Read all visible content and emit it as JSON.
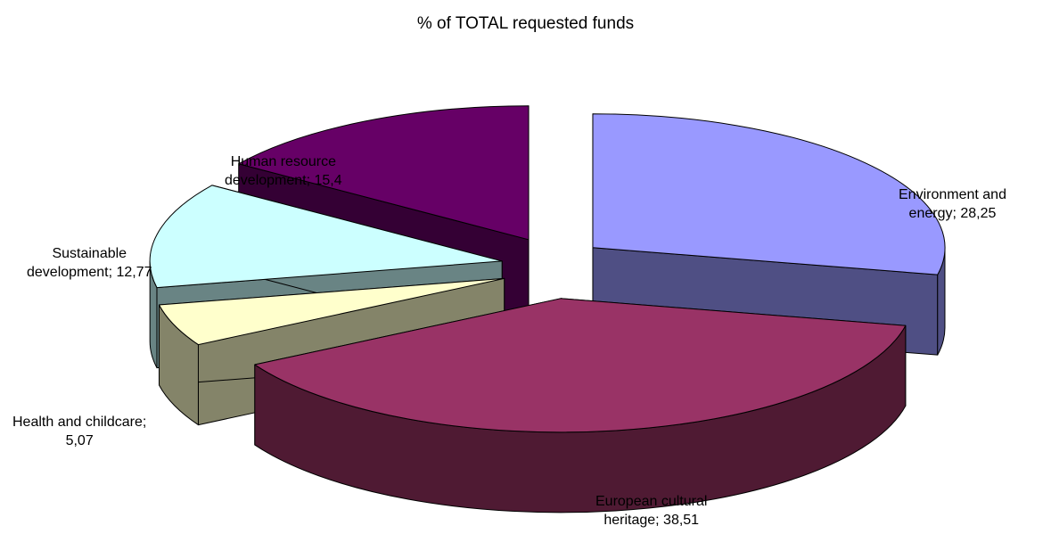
{
  "chart_data": {
    "type": "pie",
    "title": "% of TOTAL requested funds",
    "style": "3d-exploded",
    "slices": [
      {
        "label_lines": [
          "Environment and",
          "energy; 28,25"
        ],
        "name": "Environment and energy",
        "value": 28.25,
        "color": "#9999ff",
        "side_color": "#4f4f84"
      },
      {
        "label_lines": [
          "European cultural",
          "heritage; 38,51"
        ],
        "name": "European cultural heritage",
        "value": 38.51,
        "color": "#993366",
        "side_color": "#4f1a33"
      },
      {
        "label_lines": [
          "Health and childcare;",
          "5,07"
        ],
        "name": "Health and childcare",
        "value": 5.07,
        "color": "#ffffcc",
        "side_color": "#848469"
      },
      {
        "label_lines": [
          "Sustainable",
          "development; 12,77"
        ],
        "name": "Sustainable development",
        "value": 12.77,
        "color": "#ccffff",
        "side_color": "#698484"
      },
      {
        "label_lines": [
          "Human resource",
          "development; 15,4"
        ],
        "name": "Human resource development",
        "value": 15.4,
        "color": "#660066",
        "side_color": "#340034"
      }
    ]
  }
}
